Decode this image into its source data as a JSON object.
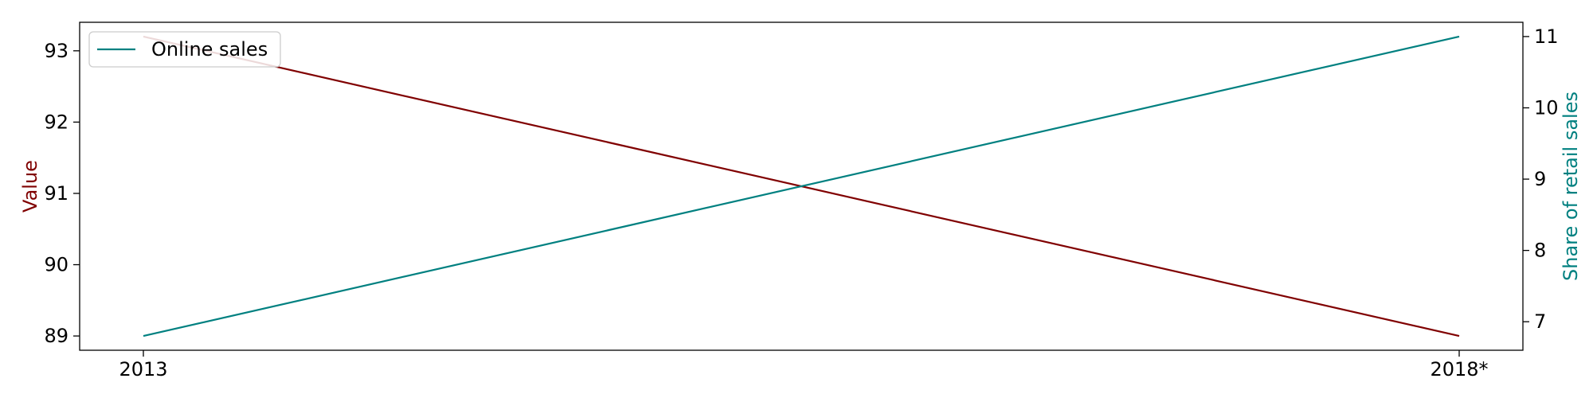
{
  "chart_data": {
    "type": "line",
    "x": [
      "2013",
      "2018*"
    ],
    "series": [
      {
        "name": "",
        "axis": "left",
        "values": [
          93.2,
          89.0
        ],
        "color": "#800000"
      },
      {
        "name": "Online sales",
        "axis": "right",
        "values": [
          6.8,
          11.0
        ],
        "color": "#008080"
      }
    ],
    "left_axis": {
      "label": "Value",
      "label_color": "#800000",
      "ticks": [
        89,
        90,
        91,
        92,
        93
      ],
      "ylim": [
        88.8,
        93.4
      ]
    },
    "right_axis": {
      "label": "Share of retail sales",
      "label_color": "#008080",
      "ticks": [
        7,
        8,
        9,
        10,
        11
      ],
      "ylim": [
        6.6,
        11.2
      ]
    },
    "legend": {
      "placement": "top-left",
      "entries": [
        "Online sales"
      ]
    },
    "grid": false
  }
}
